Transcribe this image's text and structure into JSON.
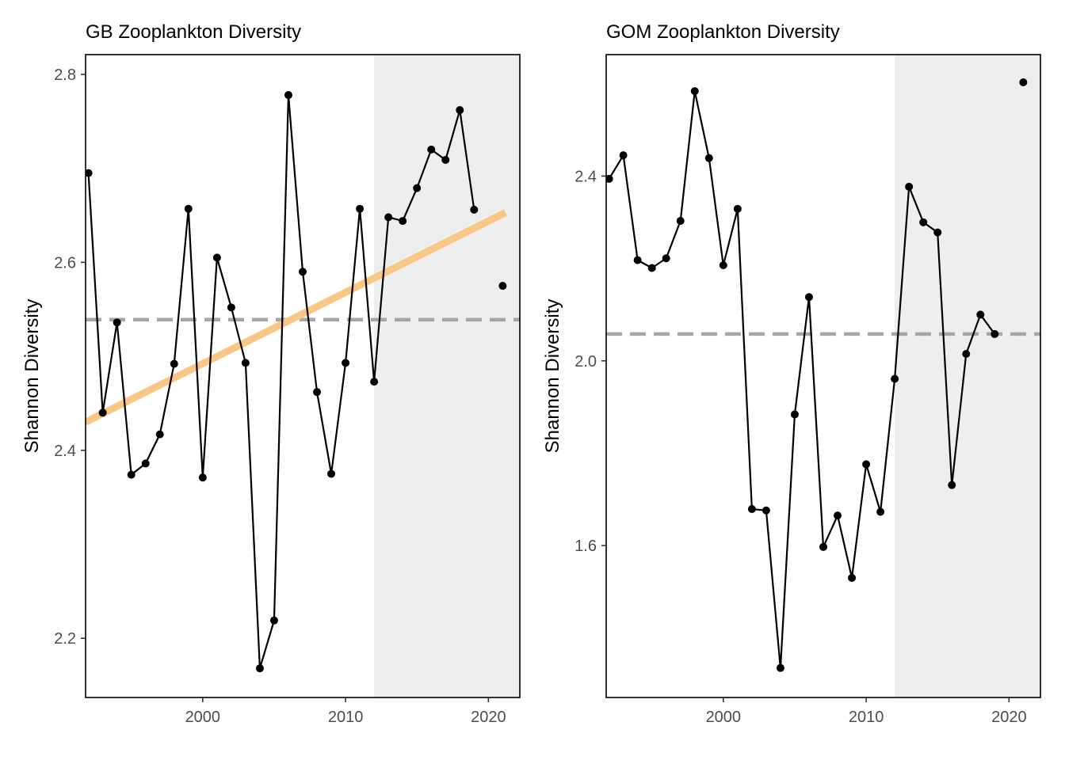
{
  "chart_data": [
    {
      "type": "line",
      "title": "GB Zooplankton Diversity",
      "xlabel": "",
      "ylabel": "Shannon Diversity",
      "xlim": [
        1991.8,
        2022.2
      ],
      "ylim": [
        2.137,
        2.821
      ],
      "xticks": [
        2000,
        2010,
        2020
      ],
      "yticks": [
        2.2,
        2.4,
        2.6,
        2.8
      ],
      "ytick_labels": [
        "2.2",
        "2.4",
        "2.6",
        "2.8"
      ],
      "grid": false,
      "shaded_region": {
        "x": [
          2012,
          2022.2
        ],
        "color": "#eeeeee"
      },
      "mean_line": {
        "y": 2.539,
        "style": "dashed",
        "color": "#a6a6a6"
      },
      "trend_line": {
        "x": [
          1991.8,
          2021.2
        ],
        "y": [
          2.43,
          2.653
        ],
        "color": "#f9c784"
      },
      "series": [
        {
          "x": [
            1992,
            1993,
            1994,
            1995,
            1996,
            1997,
            1998,
            1999,
            2000,
            2001,
            2002,
            2003,
            2004,
            2005,
            2006,
            2007,
            2008,
            2009,
            2010,
            2011,
            2012,
            2013,
            2014,
            2015,
            2016,
            2017,
            2018,
            2019
          ],
          "y": [
            2.695,
            2.44,
            2.536,
            2.374,
            2.386,
            2.417,
            2.492,
            2.657,
            2.371,
            2.605,
            2.552,
            2.493,
            2.168,
            2.219,
            2.778,
            2.59,
            2.462,
            2.375,
            2.493,
            2.657,
            2.473,
            2.648,
            2.644,
            2.679,
            2.72,
            2.709,
            2.762,
            2.656
          ]
        },
        {
          "x": [
            2021
          ],
          "y": [
            2.575
          ],
          "style": "point"
        }
      ],
      "line_color": "#000000"
    },
    {
      "type": "line",
      "title": "GOM Zooplankton Diversity",
      "xlabel": "",
      "ylabel": "Shannon Diversity",
      "xlim": [
        1991.8,
        2022.2
      ],
      "ylim": [
        1.271,
        2.663
      ],
      "xticks": [
        2000,
        2010,
        2020
      ],
      "yticks": [
        1.6,
        2.0,
        2.4
      ],
      "ytick_labels": [
        "1.6",
        "2.0",
        "2.4"
      ],
      "grid": false,
      "shaded_region": {
        "x": [
          2012,
          2022.2
        ],
        "color": "#eeeeee"
      },
      "mean_line": {
        "y": 2.058,
        "style": "dashed",
        "color": "#a6a6a6"
      },
      "series": [
        {
          "x": [
            1992,
            1993,
            1994,
            1995,
            1996,
            1997,
            1998,
            1999,
            2000,
            2001,
            2002,
            2003,
            2004,
            2005,
            2006,
            2007,
            2008,
            2009,
            2010,
            2011,
            2012,
            2013,
            2014,
            2015,
            2016,
            2017,
            2018,
            2019
          ],
          "y": [
            2.394,
            2.445,
            2.218,
            2.201,
            2.222,
            2.303,
            2.584,
            2.439,
            2.207,
            2.329,
            1.679,
            1.676,
            1.335,
            1.884,
            2.138,
            1.597,
            1.665,
            1.53,
            1.776,
            1.673,
            1.961,
            2.377,
            2.3,
            2.278,
            1.731,
            2.015,
            2.1,
            2.058
          ]
        },
        {
          "x": [
            2021
          ],
          "y": [
            2.603
          ],
          "style": "point"
        }
      ],
      "line_color": "#000000"
    }
  ]
}
